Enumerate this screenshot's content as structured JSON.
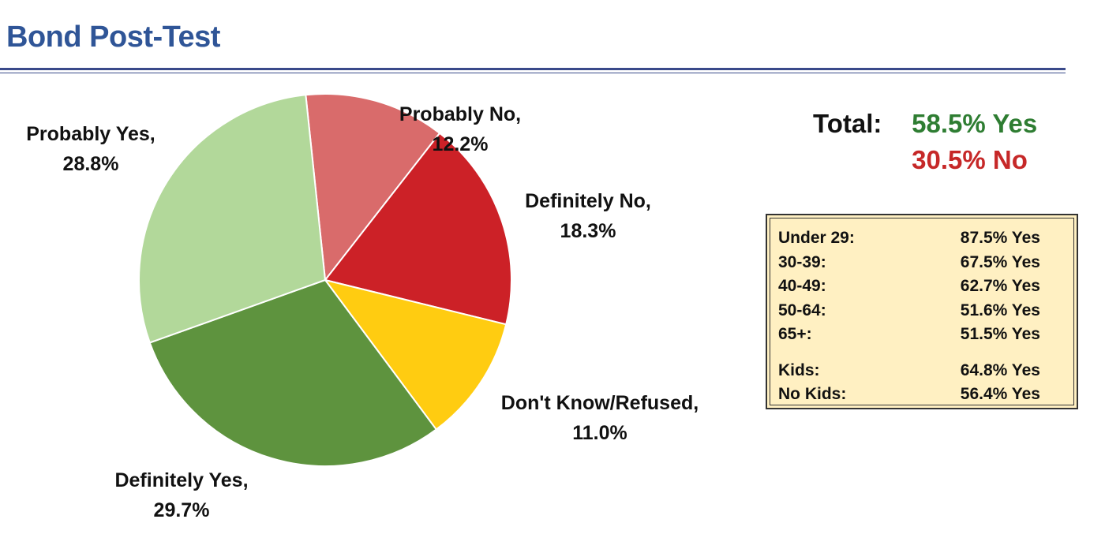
{
  "title": "Bond Post-Test",
  "chart_data": {
    "type": "pie",
    "slices": [
      {
        "label": "Probably No,",
        "value_label": "12.2%",
        "value": 12.2,
        "color": "#D96B6B"
      },
      {
        "label": "Definitely No,",
        "value_label": "18.3%",
        "value": 18.3,
        "color": "#CC2127"
      },
      {
        "label": "Don't Know/Refused,",
        "value_label": "11.0%",
        "value": 11.0,
        "color": "#FFCC11"
      },
      {
        "label": "Definitely Yes,",
        "value_label": "29.7%",
        "value": 29.7,
        "color": "#5E933E"
      },
      {
        "label": "Probably Yes,",
        "value_label": "28.8%",
        "value": 28.8,
        "color": "#B2D89A"
      }
    ]
  },
  "total": {
    "label": "Total:",
    "yes": "58.5% Yes",
    "no": "30.5% No",
    "yes_color": "#2E7D32",
    "no_color": "#C62828"
  },
  "breakdown": {
    "background": "#FFF0C2",
    "groups": [
      [
        {
          "label": "Under 29:",
          "value": "87.5% Yes"
        },
        {
          "label": "30-39:",
          "value": "67.5% Yes"
        },
        {
          "label": "40-49:",
          "value": "62.7% Yes"
        },
        {
          "label": "50-64:",
          "value": "51.6% Yes"
        },
        {
          "label": "65+:",
          "value": "51.5% Yes"
        }
      ],
      [
        {
          "label": "Kids:",
          "value": "64.8% Yes"
        },
        {
          "label": "No Kids:",
          "value": "56.4% Yes"
        }
      ]
    ]
  }
}
